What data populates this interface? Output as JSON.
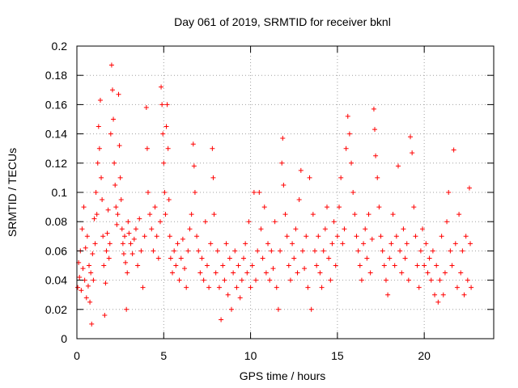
{
  "chart_data": {
    "type": "scatter",
    "title": "Day 061 of 2019, SRMTID for receiver bknl",
    "xlabel": "GPS time / hours",
    "ylabel": "SRMTID / TECUs",
    "xlim": [
      0,
      24
    ],
    "ylim": [
      0,
      0.2
    ],
    "xticks": [
      0,
      5,
      10,
      15,
      20
    ],
    "xtick_labels": [
      "0",
      "5",
      "10",
      "15",
      "20"
    ],
    "yticks": [
      0,
      0.02,
      0.04,
      0.06,
      0.08,
      0.1,
      0.12,
      0.14,
      0.16,
      0.18,
      0.2
    ],
    "ytick_labels": [
      "0",
      "0.02",
      "0.04",
      "0.06",
      "0.08",
      "0.1",
      "0.12",
      "0.14",
      "0.16",
      "0.18",
      "0.2"
    ],
    "grid": true,
    "marker": "+",
    "marker_color": "#ff0000",
    "series": [
      {
        "name": "SRMTID",
        "points": [
          [
            0.05,
            0.035
          ],
          [
            0.1,
            0.052
          ],
          [
            0.15,
            0.042
          ],
          [
            0.2,
            0.06
          ],
          [
            0.25,
            0.033
          ],
          [
            0.3,
            0.075
          ],
          [
            0.35,
            0.048
          ],
          [
            0.4,
            0.09
          ],
          [
            0.45,
            0.04
          ],
          [
            0.5,
            0.062
          ],
          [
            0.55,
            0.028
          ],
          [
            0.6,
            0.07
          ],
          [
            0.65,
            0.036
          ],
          [
            0.7,
            0.05
          ],
          [
            0.75,
            0.025
          ],
          [
            0.8,
            0.045
          ],
          [
            0.85,
            0.01
          ],
          [
            0.9,
            0.058
          ],
          [
            0.95,
            0.04
          ],
          [
            1.0,
            0.082
          ],
          [
            1.05,
            0.065
          ],
          [
            1.1,
            0.1
          ],
          [
            1.15,
            0.085
          ],
          [
            1.2,
            0.12
          ],
          [
            1.25,
            0.145
          ],
          [
            1.3,
            0.13
          ],
          [
            1.35,
            0.163
          ],
          [
            1.4,
            0.11
          ],
          [
            1.45,
            0.095
          ],
          [
            1.5,
            0.07
          ],
          [
            1.55,
            0.05
          ],
          [
            1.6,
            0.016
          ],
          [
            1.65,
            0.038
          ],
          [
            1.7,
            0.06
          ],
          [
            1.75,
            0.072
          ],
          [
            1.8,
            0.088
          ],
          [
            1.85,
            0.055
          ],
          [
            1.9,
            0.065
          ],
          [
            1.95,
            0.14
          ],
          [
            2.0,
            0.187
          ],
          [
            2.05,
            0.17
          ],
          [
            2.1,
            0.15
          ],
          [
            2.15,
            0.12
          ],
          [
            2.2,
            0.105
          ],
          [
            2.25,
            0.09
          ],
          [
            2.3,
            0.078
          ],
          [
            2.35,
            0.085
          ],
          [
            2.4,
            0.167
          ],
          [
            2.45,
            0.132
          ],
          [
            2.5,
            0.11
          ],
          [
            2.55,
            0.095
          ],
          [
            2.6,
            0.075
          ],
          [
            2.65,
            0.065
          ],
          [
            2.7,
            0.058
          ],
          [
            2.75,
            0.07
          ],
          [
            2.8,
            0.052
          ],
          [
            2.85,
            0.02
          ],
          [
            2.9,
            0.045
          ],
          [
            2.95,
            0.08
          ],
          [
            3.0,
            0.072
          ],
          [
            3.1,
            0.065
          ],
          [
            3.2,
            0.058
          ],
          [
            3.3,
            0.068
          ],
          [
            3.4,
            0.075
          ],
          [
            3.5,
            0.05
          ],
          [
            3.6,
            0.082
          ],
          [
            3.7,
            0.06
          ],
          [
            3.8,
            0.035
          ],
          [
            3.9,
            0.07
          ],
          [
            4.0,
            0.158
          ],
          [
            4.05,
            0.13
          ],
          [
            4.1,
            0.1
          ],
          [
            4.2,
            0.085
          ],
          [
            4.3,
            0.075
          ],
          [
            4.4,
            0.06
          ],
          [
            4.5,
            0.09
          ],
          [
            4.6,
            0.07
          ],
          [
            4.7,
            0.055
          ],
          [
            4.8,
            0.08
          ],
          [
            4.85,
            0.172
          ],
          [
            4.9,
            0.16
          ],
          [
            4.95,
            0.14
          ],
          [
            5.0,
            0.12
          ],
          [
            5.05,
            0.1
          ],
          [
            5.1,
            0.085
          ],
          [
            5.15,
            0.145
          ],
          [
            5.2,
            0.16
          ],
          [
            5.25,
            0.13
          ],
          [
            5.3,
            0.095
          ],
          [
            5.35,
            0.07
          ],
          [
            5.4,
            0.055
          ],
          [
            5.5,
            0.045
          ],
          [
            5.6,
            0.06
          ],
          [
            5.7,
            0.05
          ],
          [
            5.8,
            0.065
          ],
          [
            5.9,
            0.04
          ],
          [
            6.0,
            0.055
          ],
          [
            6.1,
            0.068
          ],
          [
            6.2,
            0.048
          ],
          [
            6.3,
            0.035
          ],
          [
            6.4,
            0.06
          ],
          [
            6.5,
            0.075
          ],
          [
            6.6,
            0.085
          ],
          [
            6.7,
            0.133
          ],
          [
            6.75,
            0.118
          ],
          [
            6.8,
            0.1
          ],
          [
            6.9,
            0.07
          ],
          [
            7.0,
            0.06
          ],
          [
            7.1,
            0.045
          ],
          [
            7.2,
            0.055
          ],
          [
            7.3,
            0.04
          ],
          [
            7.4,
            0.08
          ],
          [
            7.5,
            0.05
          ],
          [
            7.6,
            0.035
          ],
          [
            7.7,
            0.065
          ],
          [
            7.8,
            0.13
          ],
          [
            7.85,
            0.11
          ],
          [
            7.9,
            0.085
          ],
          [
            8.0,
            0.045
          ],
          [
            8.1,
            0.06
          ],
          [
            8.2,
            0.035
          ],
          [
            8.3,
            0.013
          ],
          [
            8.4,
            0.05
          ],
          [
            8.5,
            0.04
          ],
          [
            8.6,
            0.065
          ],
          [
            8.7,
            0.03
          ],
          [
            8.8,
            0.055
          ],
          [
            8.9,
            0.02
          ],
          [
            9.0,
            0.045
          ],
          [
            9.1,
            0.06
          ],
          [
            9.2,
            0.035
          ],
          [
            9.3,
            0.05
          ],
          [
            9.4,
            0.028
          ],
          [
            9.5,
            0.04
          ],
          [
            9.6,
            0.055
          ],
          [
            9.7,
            0.065
          ],
          [
            9.8,
            0.045
          ],
          [
            9.9,
            0.08
          ],
          [
            10.0,
            0.035
          ],
          [
            10.1,
            0.05
          ],
          [
            10.2,
            0.1
          ],
          [
            10.3,
            0.04
          ],
          [
            10.4,
            0.06
          ],
          [
            10.5,
            0.1
          ],
          [
            10.6,
            0.075
          ],
          [
            10.7,
            0.055
          ],
          [
            10.8,
            0.09
          ],
          [
            10.9,
            0.045
          ],
          [
            11.0,
            0.065
          ],
          [
            11.1,
            0.04
          ],
          [
            11.2,
            0.06
          ],
          [
            11.3,
            0.048
          ],
          [
            11.4,
            0.08
          ],
          [
            11.5,
            0.035
          ],
          [
            11.6,
            0.02
          ],
          [
            11.7,
            0.06
          ],
          [
            11.8,
            0.12
          ],
          [
            11.85,
            0.137
          ],
          [
            11.9,
            0.105
          ],
          [
            12.0,
            0.085
          ],
          [
            12.1,
            0.07
          ],
          [
            12.2,
            0.05
          ],
          [
            12.3,
            0.04
          ],
          [
            12.4,
            0.065
          ],
          [
            12.5,
            0.055
          ],
          [
            12.6,
            0.075
          ],
          [
            12.7,
            0.045
          ],
          [
            12.8,
            0.095
          ],
          [
            12.9,
            0.115
          ],
          [
            13.0,
            0.06
          ],
          [
            13.1,
            0.048
          ],
          [
            13.2,
            0.07
          ],
          [
            13.3,
            0.035
          ],
          [
            13.4,
            0.11
          ],
          [
            13.5,
            0.02
          ],
          [
            13.6,
            0.085
          ],
          [
            13.7,
            0.06
          ],
          [
            13.8,
            0.05
          ],
          [
            13.9,
            0.07
          ],
          [
            14.0,
            0.045
          ],
          [
            14.1,
            0.035
          ],
          [
            14.2,
            0.06
          ],
          [
            14.3,
            0.075
          ],
          [
            14.4,
            0.09
          ],
          [
            14.5,
            0.055
          ],
          [
            14.6,
            0.04
          ],
          [
            14.7,
            0.065
          ],
          [
            14.8,
            0.08
          ],
          [
            14.9,
            0.05
          ],
          [
            15.0,
            0.07
          ],
          [
            15.1,
            0.09
          ],
          [
            15.2,
            0.11
          ],
          [
            15.3,
            0.065
          ],
          [
            15.4,
            0.075
          ],
          [
            15.5,
            0.13
          ],
          [
            15.6,
            0.152
          ],
          [
            15.7,
            0.14
          ],
          [
            15.8,
            0.12
          ],
          [
            15.9,
            0.1
          ],
          [
            16.0,
            0.085
          ],
          [
            16.1,
            0.07
          ],
          [
            16.2,
            0.06
          ],
          [
            16.3,
            0.05
          ],
          [
            16.4,
            0.04
          ],
          [
            16.5,
            0.065
          ],
          [
            16.6,
            0.075
          ],
          [
            16.7,
            0.055
          ],
          [
            16.8,
            0.085
          ],
          [
            16.9,
            0.045
          ],
          [
            17.0,
            0.068
          ],
          [
            17.1,
            0.157
          ],
          [
            17.15,
            0.143
          ],
          [
            17.2,
            0.125
          ],
          [
            17.3,
            0.11
          ],
          [
            17.4,
            0.09
          ],
          [
            17.5,
            0.07
          ],
          [
            17.6,
            0.06
          ],
          [
            17.7,
            0.05
          ],
          [
            17.8,
            0.04
          ],
          [
            17.9,
            0.03
          ],
          [
            18.0,
            0.055
          ],
          [
            18.1,
            0.065
          ],
          [
            18.2,
            0.085
          ],
          [
            18.3,
            0.05
          ],
          [
            18.4,
            0.07
          ],
          [
            18.5,
            0.118
          ],
          [
            18.6,
            0.06
          ],
          [
            18.7,
            0.045
          ],
          [
            18.8,
            0.075
          ],
          [
            18.9,
            0.055
          ],
          [
            19.0,
            0.065
          ],
          [
            19.1,
            0.04
          ],
          [
            19.2,
            0.138
          ],
          [
            19.3,
            0.127
          ],
          [
            19.4,
            0.09
          ],
          [
            19.5,
            0.07
          ],
          [
            19.6,
            0.05
          ],
          [
            19.7,
            0.035
          ],
          [
            19.8,
            0.06
          ],
          [
            19.9,
            0.075
          ],
          [
            20.0,
            0.05
          ],
          [
            20.1,
            0.065
          ],
          [
            20.2,
            0.045
          ],
          [
            20.3,
            0.055
          ],
          [
            20.4,
            0.04
          ],
          [
            20.5,
            0.06
          ],
          [
            20.6,
            0.03
          ],
          [
            20.7,
            0.05
          ],
          [
            20.8,
            0.025
          ],
          [
            20.9,
            0.04
          ],
          [
            21.0,
            0.07
          ],
          [
            21.1,
            0.03
          ],
          [
            21.2,
            0.045
          ],
          [
            21.3,
            0.08
          ],
          [
            21.4,
            0.1
          ],
          [
            21.5,
            0.06
          ],
          [
            21.6,
            0.05
          ],
          [
            21.7,
            0.129
          ],
          [
            21.8,
            0.065
          ],
          [
            21.9,
            0.035
          ],
          [
            22.0,
            0.085
          ],
          [
            22.1,
            0.045
          ],
          [
            22.2,
            0.06
          ],
          [
            22.3,
            0.03
          ],
          [
            22.4,
            0.07
          ],
          [
            22.5,
            0.04
          ],
          [
            22.6,
            0.103
          ],
          [
            22.65,
            0.065
          ],
          [
            22.7,
            0.035
          ]
        ]
      }
    ]
  }
}
